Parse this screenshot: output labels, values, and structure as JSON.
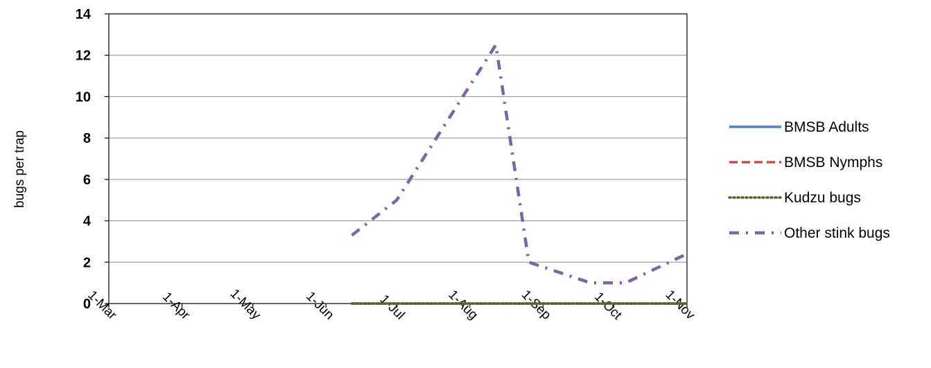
{
  "chart_data": {
    "type": "line",
    "title": "",
    "xlabel": "",
    "ylabel": "bugs per trap",
    "ylim": [
      0,
      14
    ],
    "yticks": [
      "0",
      "2",
      "4",
      "6",
      "8",
      "10",
      "12",
      "14"
    ],
    "xticks": [
      "1-Mar",
      "1-Apr",
      "1-May",
      "1-Jun",
      "1-Jul",
      "1-Aug",
      "1-Sep",
      "1-Oct",
      "1-Nov"
    ],
    "grid": "horizontal",
    "legend_position": "right",
    "series": [
      {
        "name": "BMSB Adults",
        "color": "#4f81bd",
        "dash": "solid",
        "points": [
          {
            "x": "2013-06-12",
            "y": 0
          },
          {
            "x": "2013-07-12",
            "y": 0
          },
          {
            "x": "2013-08-12",
            "y": 0
          },
          {
            "x": "2013-09-01",
            "y": 0
          },
          {
            "x": "2013-10-01",
            "y": 0
          },
          {
            "x": "2013-11-01",
            "y": 0
          }
        ]
      },
      {
        "name": "BMSB Nymphs",
        "color": "#c0504d",
        "dash": "dash",
        "points": [
          {
            "x": "2013-06-12",
            "y": 0
          },
          {
            "x": "2013-07-12",
            "y": 0
          },
          {
            "x": "2013-08-12",
            "y": 0
          },
          {
            "x": "2013-09-01",
            "y": 0
          },
          {
            "x": "2013-10-01",
            "y": 0
          },
          {
            "x": "2013-11-01",
            "y": 0
          }
        ]
      },
      {
        "name": "Kudzu bugs",
        "color": "#4f6228",
        "dash": "dot",
        "points": [
          {
            "x": "2013-06-12",
            "y": 0
          },
          {
            "x": "2013-07-12",
            "y": 0
          },
          {
            "x": "2013-08-12",
            "y": 0
          },
          {
            "x": "2013-09-01",
            "y": 0
          },
          {
            "x": "2013-10-01",
            "y": 0
          },
          {
            "x": "2013-11-01",
            "y": 0
          }
        ]
      },
      {
        "name": "Other stink bugs",
        "color": "#8064a2",
        "dash": "dashdot",
        "points": [
          {
            "x": "2013-06-12",
            "y": 3.3
          },
          {
            "x": "2013-07-01",
            "y": 5.0
          },
          {
            "x": "2013-08-12",
            "y": 12.5
          },
          {
            "x": "2013-08-26",
            "y": 2.0
          },
          {
            "x": "2013-09-21",
            "y": 1.0
          },
          {
            "x": "2013-10-06",
            "y": 1.0
          },
          {
            "x": "2013-11-01",
            "y": 2.4
          }
        ]
      }
    ]
  }
}
